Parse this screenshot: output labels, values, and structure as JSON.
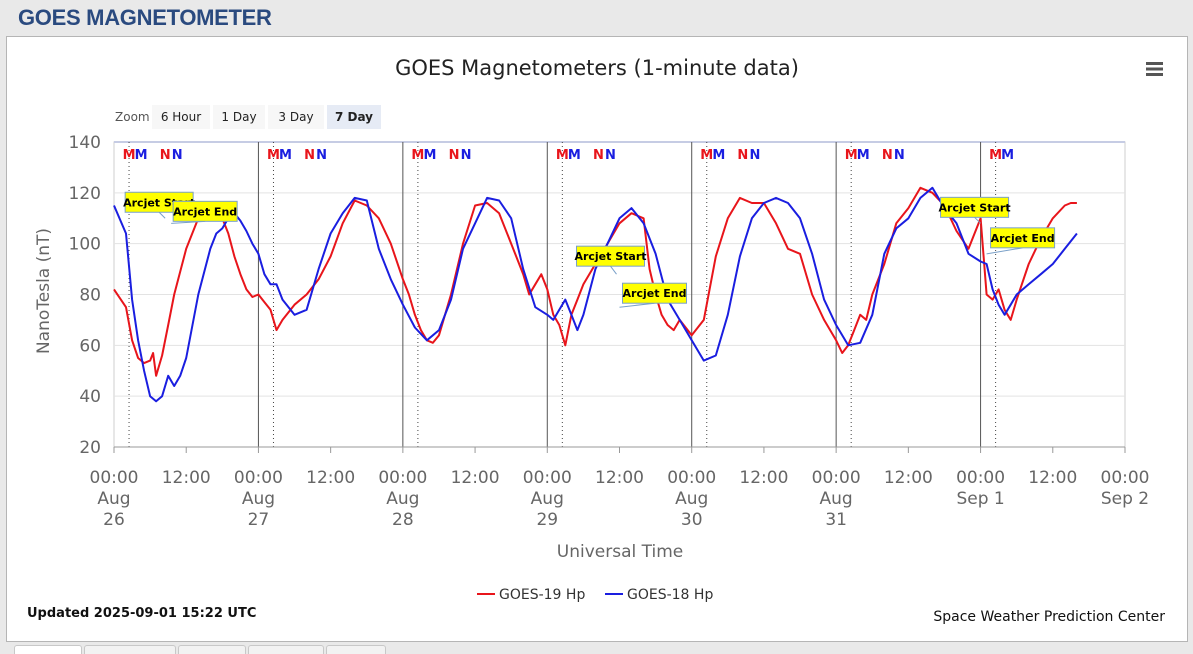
{
  "page": {
    "title": "GOES MAGNETOMETER"
  },
  "chart_data": {
    "type": "line",
    "title": "GOES Magnetometers (1-minute data)",
    "xlabel": "Universal Time",
    "ylabel": "NanoTesla (nT)",
    "ylim": [
      20,
      140
    ],
    "yticks": [
      20,
      40,
      60,
      80,
      100,
      120,
      140
    ],
    "xlim_hours": [
      0,
      168
    ],
    "xlim": [
      "2025-08-26 00:00",
      "2025-09-02 00:00"
    ],
    "grid": true,
    "legend": "bottom-center",
    "x_ticks": [
      {
        "hour": 0,
        "lines": [
          "00:00",
          "Aug",
          "26"
        ]
      },
      {
        "hour": 12,
        "lines": [
          "12:00"
        ]
      },
      {
        "hour": 24,
        "lines": [
          "00:00",
          "Aug",
          "27"
        ]
      },
      {
        "hour": 36,
        "lines": [
          "12:00"
        ]
      },
      {
        "hour": 48,
        "lines": [
          "00:00",
          "Aug",
          "28"
        ]
      },
      {
        "hour": 60,
        "lines": [
          "12:00"
        ]
      },
      {
        "hour": 72,
        "lines": [
          "00:00",
          "Aug",
          "29"
        ]
      },
      {
        "hour": 84,
        "lines": [
          "12:00"
        ]
      },
      {
        "hour": 96,
        "lines": [
          "00:00",
          "Aug",
          "30"
        ]
      },
      {
        "hour": 108,
        "lines": [
          "12:00"
        ]
      },
      {
        "hour": 120,
        "lines": [
          "00:00",
          "Aug",
          "31"
        ]
      },
      {
        "hour": 132,
        "lines": [
          "12:00"
        ]
      },
      {
        "hour": 144,
        "lines": [
          "00:00",
          "Sep 1"
        ]
      },
      {
        "hour": 156,
        "lines": [
          "12:00"
        ]
      },
      {
        "hour": 168,
        "lines": [
          "00:00",
          "Sep 2"
        ]
      }
    ],
    "series": [
      {
        "name": "GOES-19 Hp",
        "color": "#e8151b",
        "hours": [
          0,
          2,
          3,
          4,
          5,
          6,
          6.5,
          7,
          8,
          9,
          10,
          12,
          14,
          16,
          17,
          18,
          19,
          20,
          21,
          22,
          23,
          24,
          25,
          26,
          27,
          28,
          30,
          32,
          34,
          36,
          38,
          40,
          42,
          44,
          46,
          48,
          49,
          50,
          51,
          52,
          53,
          54,
          56,
          58,
          60,
          62,
          64,
          66,
          68,
          69,
          70,
          71,
          72,
          73,
          74,
          75,
          76,
          77,
          78,
          80,
          82,
          84,
          86,
          88,
          89,
          90,
          91,
          92,
          93,
          94,
          96,
          98,
          100,
          102,
          104,
          106,
          108,
          110,
          112,
          114,
          116,
          118,
          120,
          121,
          122,
          123,
          124,
          125,
          126,
          128,
          130,
          132,
          134,
          136,
          138,
          140,
          142,
          144,
          145,
          146,
          147,
          148,
          149,
          150,
          152,
          154,
          156,
          158,
          159,
          160
        ],
        "values": [
          82,
          75,
          62,
          55,
          53,
          54,
          57,
          48,
          56,
          68,
          80,
          98,
          110,
          115,
          114,
          110,
          104,
          95,
          88,
          82,
          79,
          80,
          77,
          74,
          66,
          70,
          76,
          80,
          86,
          95,
          108,
          117,
          115,
          110,
          100,
          86,
          80,
          72,
          66,
          62,
          61,
          64,
          80,
          100,
          115,
          116,
          112,
          100,
          88,
          80,
          84,
          88,
          82,
          72,
          68,
          60,
          72,
          78,
          84,
          92,
          100,
          108,
          112,
          110,
          90,
          80,
          72,
          68,
          66,
          70,
          64,
          70,
          95,
          110,
          118,
          116,
          116,
          108,
          98,
          96,
          80,
          70,
          62,
          57,
          60,
          66,
          72,
          70,
          80,
          92,
          108,
          114,
          122,
          120,
          115,
          105,
          98,
          110,
          80,
          78,
          82,
          74,
          70,
          78,
          92,
          102,
          110,
          115,
          116,
          116
        ]
      },
      {
        "name": "GOES-18 Hp",
        "color": "#1a1ee0",
        "hours": [
          0,
          2,
          3,
          4,
          5,
          6,
          7,
          8,
          9,
          10,
          11,
          12,
          14,
          16,
          17,
          18,
          19,
          20,
          21,
          22,
          23,
          24,
          25,
          26,
          27,
          28,
          30,
          32,
          34,
          36,
          38,
          40,
          42,
          44,
          46,
          48,
          50,
          52,
          54,
          56,
          58,
          60,
          62,
          64,
          66,
          68,
          70,
          72,
          73,
          74,
          75,
          76,
          77,
          78,
          80,
          82,
          84,
          86,
          88,
          90,
          92,
          94,
          96,
          98,
          100,
          102,
          104,
          106,
          108,
          110,
          112,
          114,
          116,
          118,
          120,
          122,
          124,
          126,
          128,
          130,
          132,
          134,
          136,
          138,
          140,
          142,
          144,
          145,
          146,
          147,
          148,
          149,
          150,
          152,
          154,
          156,
          158,
          160
        ],
        "values": [
          115,
          104,
          78,
          62,
          50,
          40,
          38,
          40,
          48,
          44,
          48,
          55,
          80,
          98,
          104,
          106,
          110,
          112,
          109,
          105,
          100,
          96,
          88,
          84,
          84,
          78,
          72,
          74,
          90,
          104,
          112,
          118,
          117,
          98,
          86,
          76,
          67,
          62,
          66,
          78,
          98,
          108,
          118,
          117,
          110,
          90,
          75,
          72,
          70,
          74,
          78,
          72,
          66,
          72,
          90,
          100,
          110,
          114,
          108,
          96,
          78,
          70,
          62,
          54,
          56,
          72,
          95,
          110,
          116,
          118,
          116,
          110,
          96,
          78,
          68,
          60,
          61,
          72,
          96,
          106,
          110,
          118,
          122,
          114,
          108,
          96,
          93,
          92,
          82,
          76,
          72,
          76,
          80,
          84,
          88,
          92,
          98,
          104
        ]
      }
    ],
    "markers": [
      {
        "hour": 2.5,
        "label": "M",
        "color": "#e8151b"
      },
      {
        "hour": 4.5,
        "label": "M",
        "color": "#1a1ee0"
      },
      {
        "hour": 8.5,
        "label": "N",
        "color": "#e8151b"
      },
      {
        "hour": 10.5,
        "label": "N",
        "color": "#1a1ee0"
      },
      {
        "hour": 26.5,
        "label": "M",
        "color": "#e8151b"
      },
      {
        "hour": 28.5,
        "label": "M",
        "color": "#1a1ee0"
      },
      {
        "hour": 32.5,
        "label": "N",
        "color": "#e8151b"
      },
      {
        "hour": 34.5,
        "label": "N",
        "color": "#1a1ee0"
      },
      {
        "hour": 50.5,
        "label": "M",
        "color": "#e8151b"
      },
      {
        "hour": 52.5,
        "label": "M",
        "color": "#1a1ee0"
      },
      {
        "hour": 56.5,
        "label": "N",
        "color": "#e8151b"
      },
      {
        "hour": 58.5,
        "label": "N",
        "color": "#1a1ee0"
      },
      {
        "hour": 74.5,
        "label": "M",
        "color": "#e8151b"
      },
      {
        "hour": 76.5,
        "label": "M",
        "color": "#1a1ee0"
      },
      {
        "hour": 80.5,
        "label": "N",
        "color": "#e8151b"
      },
      {
        "hour": 82.5,
        "label": "N",
        "color": "#1a1ee0"
      },
      {
        "hour": 98.5,
        "label": "M",
        "color": "#e8151b"
      },
      {
        "hour": 100.5,
        "label": "M",
        "color": "#1a1ee0"
      },
      {
        "hour": 104.5,
        "label": "N",
        "color": "#e8151b"
      },
      {
        "hour": 106.5,
        "label": "N",
        "color": "#1a1ee0"
      },
      {
        "hour": 122.5,
        "label": "M",
        "color": "#e8151b"
      },
      {
        "hour": 124.5,
        "label": "M",
        "color": "#1a1ee0"
      },
      {
        "hour": 128.5,
        "label": "N",
        "color": "#e8151b"
      },
      {
        "hour": 130.5,
        "label": "N",
        "color": "#1a1ee0"
      },
      {
        "hour": 146.5,
        "label": "M",
        "color": "#e8151b"
      },
      {
        "hour": 148.5,
        "label": "M",
        "color": "#1a1ee0"
      }
    ],
    "dotted_line_hours": [
      2.5,
      26.5,
      50.5,
      74.5,
      98.5,
      122.5,
      146.5
    ],
    "annotations": [
      {
        "text": "Arcjet Start",
        "hour": 8.5,
        "value": 110
      },
      {
        "text": "Arcjet End",
        "hour": 9.5,
        "value": 108
      },
      {
        "text": "Arcjet Start",
        "hour": 83.5,
        "value": 88
      },
      {
        "text": "Arcjet End",
        "hour": 84,
        "value": 75
      },
      {
        "text": "Arcjet Start",
        "hour": 144,
        "value": 108
      },
      {
        "text": "Arcjet End",
        "hour": 145,
        "value": 96
      }
    ]
  },
  "zoom": {
    "label": "Zoom",
    "buttons": [
      "6 Hour",
      "1 Day",
      "3 Day",
      "7 Day"
    ],
    "selected": "7 Day"
  },
  "footer": {
    "updated": "Updated 2025-09-01 15:22 UTC",
    "credit": "Space Weather Prediction Center"
  },
  "menu": {
    "icon": "hamburger-menu-icon"
  }
}
